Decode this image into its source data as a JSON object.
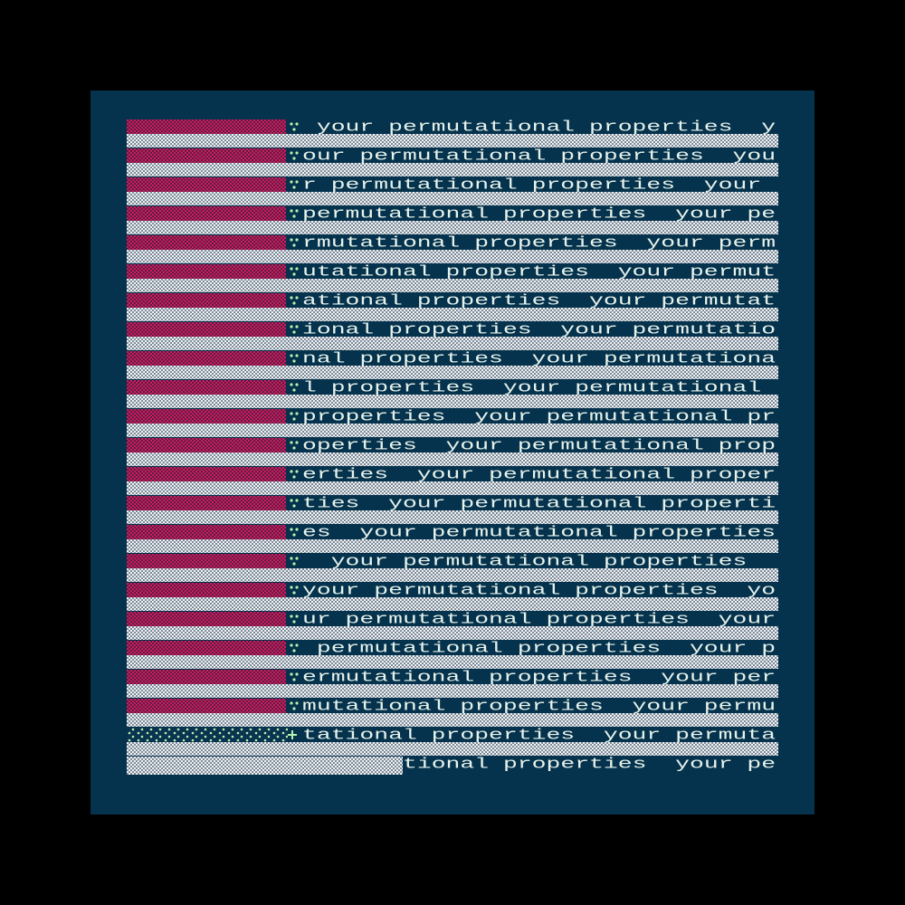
{
  "rows": [
    " your permutational properties  y",
    "our permutational properties  you",
    "r permutational properties  your ",
    "permutational properties  your pe",
    "rmutational properties  your perm",
    "utational properties  your permut",
    "ational properties  your permutat",
    "ional properties  your permutatio",
    "nal properties  your permutationa",
    "l properties  your permutational ",
    "properties  your permutational pr",
    "operties  your permutational prop",
    "erties  your permutational proper",
    "ties  your permutational properti",
    "es  your permutational properties",
    "  your permutational properties  ",
    "your permutational properties  yo",
    "ur permutational properties  your",
    " permutational properties  your p",
    "ermutational properties  your per",
    "mutational properties  your permu",
    "tational properties  your permuta",
    "tional properties  your pe"
  ]
}
